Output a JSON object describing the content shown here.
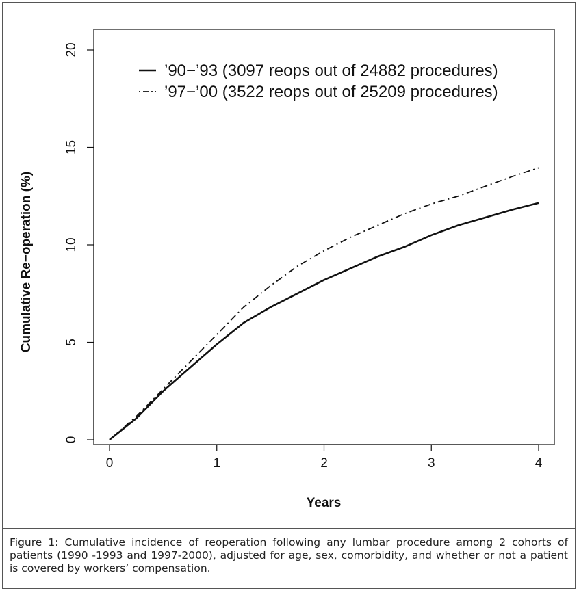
{
  "chart_data": {
    "type": "line",
    "xlabel": "Years",
    "ylabel": "Cumulative Re−operation (%)",
    "xlim": [
      0,
      4
    ],
    "ylim": [
      0,
      20
    ],
    "xticks": [
      0,
      1,
      2,
      3,
      4
    ],
    "yticks": [
      0,
      5,
      10,
      15,
      20
    ],
    "xtick_labels": [
      "0",
      "1",
      "2",
      "3",
      "4"
    ],
    "ytick_labels": [
      "0",
      "5",
      "10",
      "15",
      "20"
    ],
    "grid": false,
    "legend_position": "top-right",
    "series": [
      {
        "name": "’90−’93 (3097 reops out of 24882 procedures)",
        "line_style": "solid",
        "x": [
          0,
          0.25,
          0.5,
          0.75,
          1.0,
          1.25,
          1.5,
          1.75,
          2.0,
          2.25,
          2.5,
          2.75,
          3.0,
          3.25,
          3.5,
          3.75,
          4.0
        ],
        "y": [
          0,
          1.1,
          2.5,
          3.7,
          4.9,
          6.0,
          6.8,
          7.5,
          8.2,
          8.8,
          9.4,
          9.9,
          10.5,
          11.0,
          11.4,
          11.8,
          12.15
        ]
      },
      {
        "name": "’97−’00 (3522 reops out of 25209 procedures)",
        "line_style": "dotdash",
        "x": [
          0,
          0.25,
          0.5,
          0.75,
          1.0,
          1.25,
          1.5,
          1.75,
          2.0,
          2.25,
          2.5,
          2.75,
          3.0,
          3.25,
          3.5,
          3.75,
          4.0
        ],
        "y": [
          0,
          1.2,
          2.6,
          4.0,
          5.4,
          6.8,
          7.9,
          8.9,
          9.7,
          10.4,
          11.0,
          11.6,
          12.1,
          12.5,
          13.0,
          13.5,
          13.95
        ]
      }
    ]
  },
  "caption": "Figure 1: Cumulative incidence of reoperation following any lumbar procedure among 2 cohorts of patients (1990 -1993 and 1997-2000), adjusted for age, sex, comorbidity, and whether or not a patient is covered by workers’ compensation."
}
